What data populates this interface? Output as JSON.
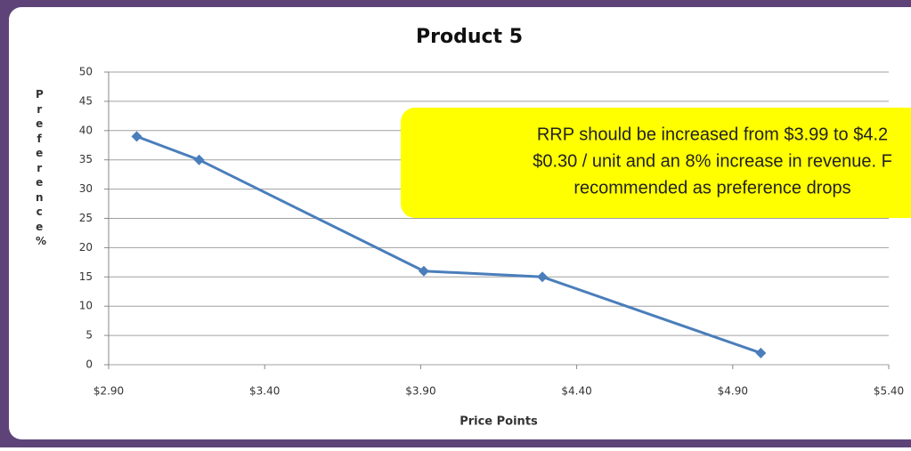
{
  "chart_data": {
    "type": "line",
    "title": "Product 5",
    "x_label": "Price Points",
    "y_label": "Preference %",
    "series": [
      {
        "name": "Preference",
        "color": "#4a7ebb",
        "x": [
          2.99,
          3.19,
          3.91,
          4.29,
          4.99
        ],
        "values": [
          39,
          35,
          16,
          15,
          2
        ]
      }
    ],
    "xlim": [
      2.9,
      5.4
    ],
    "xticks": [
      {
        "value": 2.9,
        "label": "$2.90"
      },
      {
        "value": 3.4,
        "label": "$3.40"
      },
      {
        "value": 3.9,
        "label": "$3.90"
      },
      {
        "value": 4.4,
        "label": "$4.40"
      },
      {
        "value": 4.9,
        "label": "$4.90"
      },
      {
        "value": 5.4,
        "label": "$5.40"
      }
    ],
    "ylim": [
      0,
      50
    ],
    "yticks": [
      0,
      5,
      10,
      15,
      20,
      25,
      30,
      35,
      40,
      45,
      50
    ],
    "grid": true,
    "annotation": [
      "RRP should be increased from $3.99 to $4.2",
      "$0.30 / unit and an 8% increase in revenue. F",
      "recommended as preference drops"
    ]
  }
}
